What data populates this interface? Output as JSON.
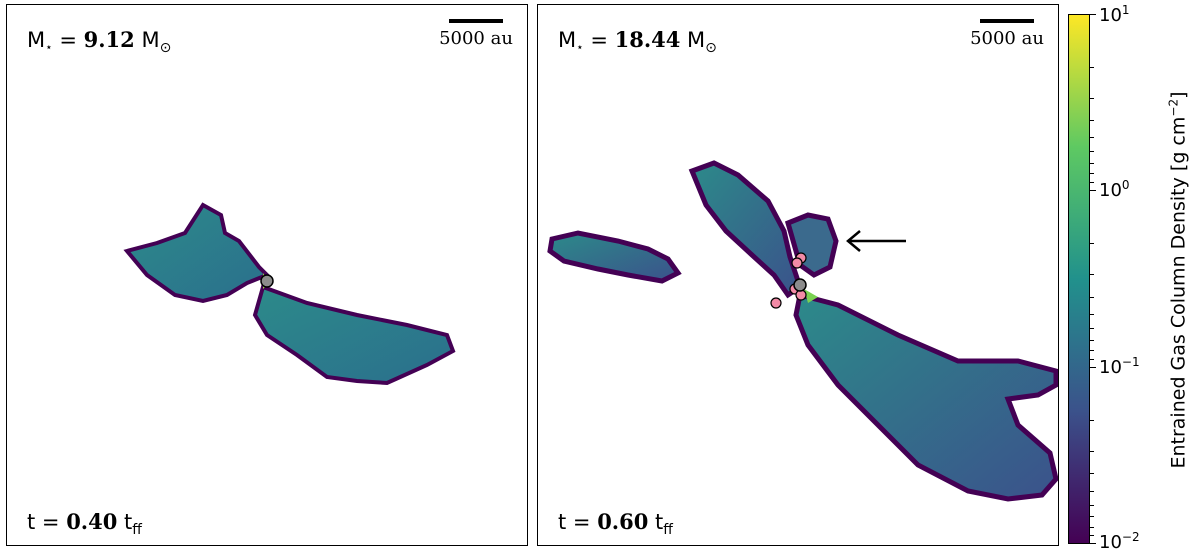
{
  "panels": [
    {
      "mass_prefix": "M",
      "mass_star": "⋆",
      "mass_eq": " = ",
      "mass_value": "9.12",
      "mass_unit": "M",
      "mass_unit_sub": "⊙",
      "time_prefix": "t = ",
      "time_value": "0.40",
      "time_unit": "t",
      "time_unit_sub": "ff",
      "scalebar_label": "5000 au"
    },
    {
      "mass_prefix": "M",
      "mass_star": "⋆",
      "mass_eq": " = ",
      "mass_value": "18.44",
      "mass_unit": "M",
      "mass_unit_sub": "⊙",
      "time_prefix": "t = ",
      "time_value": "0.60",
      "time_unit": "t",
      "time_unit_sub": "ff",
      "scalebar_label": "5000 au"
    }
  ],
  "colorbar": {
    "title_main": "Entrained Gas Column Density [g cm",
    "title_exp": "−2",
    "title_end": "]",
    "colormap": "viridis",
    "scale": "log",
    "ticks": [
      {
        "base": "10",
        "exp": "1"
      },
      {
        "base": "10",
        "exp": "0"
      },
      {
        "base": "10",
        "exp": "−1"
      },
      {
        "base": "10",
        "exp": "−2"
      }
    ]
  },
  "colors": {
    "star_primary": "#8c8c8c",
    "star_secondary": "#f28aa6",
    "gas_low": "#440154",
    "gas_mid": "#2a7a8c",
    "gas_high": "#fde725"
  }
}
